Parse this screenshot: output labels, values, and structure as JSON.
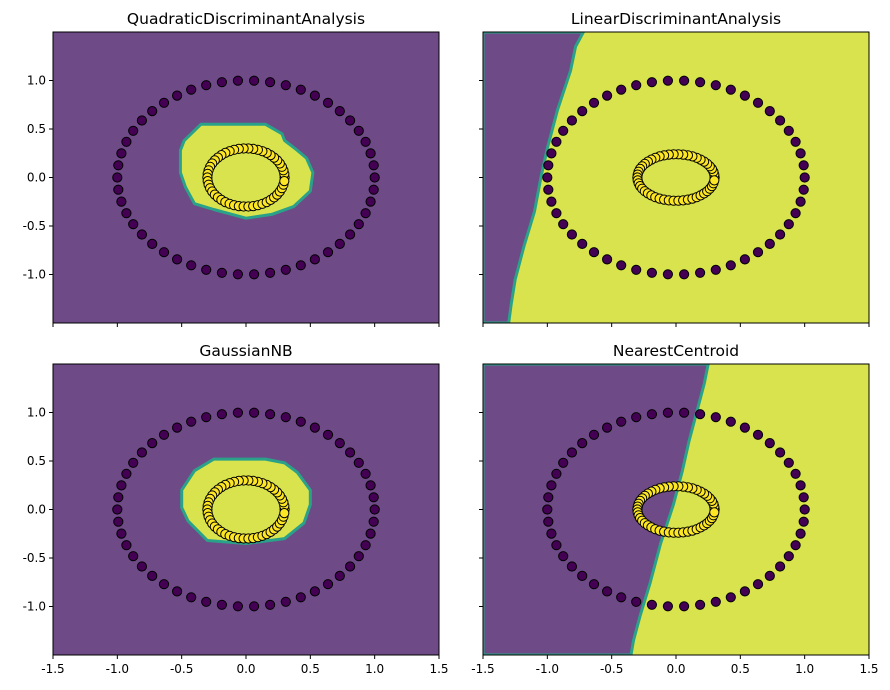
{
  "chart_data": [
    {
      "type": "scatter",
      "title": "QuadraticDiscriminantAnalysis",
      "xlim": [
        -1.5,
        1.5
      ],
      "ylim": [
        -1.5,
        1.5
      ],
      "xticks": [
        "-1.5",
        "-1.0",
        "-0.5",
        "0.0",
        "0.5",
        "1.0",
        "1.5"
      ],
      "yticks": [
        "-1.0",
        "-0.5",
        "0.0",
        "0.5",
        "1.0"
      ],
      "show_xtick_labels": false,
      "show_ytick_labels": true,
      "background_class": 0,
      "region_polygon": [
        [
          -0.51,
          0.28
        ],
        [
          -0.51,
          0.05
        ],
        [
          -0.47,
          -0.1
        ],
        [
          -0.4,
          -0.27
        ],
        [
          -0.25,
          -0.33
        ],
        [
          0.0,
          -0.42
        ],
        [
          0.2,
          -0.38
        ],
        [
          0.37,
          -0.3
        ],
        [
          0.5,
          -0.14
        ],
        [
          0.52,
          0.05
        ],
        [
          0.47,
          0.2
        ],
        [
          0.38,
          0.3
        ],
        [
          0.3,
          0.38
        ],
        [
          0.28,
          0.45
        ],
        [
          0.15,
          0.55
        ],
        [
          -0.35,
          0.55
        ],
        [
          -0.48,
          0.38
        ]
      ],
      "series": [
        {
          "class": 0,
          "shape": "circle",
          "radius": 1.0,
          "count": 50
        },
        {
          "class": 1,
          "shape": "ellipse",
          "rx": 0.3,
          "ry": 0.3,
          "count": 50
        }
      ]
    },
    {
      "type": "scatter",
      "title": "LinearDiscriminantAnalysis",
      "xlim": [
        -1.5,
        1.5
      ],
      "ylim": [
        -1.5,
        1.5
      ],
      "xticks": [
        "-1.5",
        "-1.0",
        "-0.5",
        "0.0",
        "0.5",
        "1.0",
        "1.5"
      ],
      "yticks": [
        "-1.0",
        "-0.5",
        "0.0",
        "0.5",
        "1.0"
      ],
      "show_xtick_labels": false,
      "show_ytick_labels": false,
      "background_class": 1,
      "region_polygon": [
        [
          -1.5,
          1.5
        ],
        [
          -0.72,
          1.5
        ],
        [
          -0.78,
          1.35
        ],
        [
          -0.82,
          1.1
        ],
        [
          -0.92,
          0.7
        ],
        [
          -1.0,
          0.3
        ],
        [
          -1.05,
          0.0
        ],
        [
          -1.1,
          -0.35
        ],
        [
          -1.18,
          -0.7
        ],
        [
          -1.25,
          -1.05
        ],
        [
          -1.28,
          -1.3
        ],
        [
          -1.3,
          -1.5
        ],
        [
          -1.5,
          -1.5
        ]
      ],
      "series": [
        {
          "class": 0,
          "shape": "circle",
          "radius": 1.0,
          "count": 50
        },
        {
          "class": 1,
          "shape": "ellipse",
          "rx": 0.3,
          "ry": 0.24,
          "count": 50
        }
      ]
    },
    {
      "type": "scatter",
      "title": "GaussianNB",
      "xlim": [
        -1.5,
        1.5
      ],
      "ylim": [
        -1.5,
        1.5
      ],
      "xticks": [
        "-1.5",
        "-1.0",
        "-0.5",
        "0.0",
        "0.5",
        "1.0",
        "1.5"
      ],
      "yticks": [
        "-1.0",
        "-0.5",
        "0.0",
        "0.5",
        "1.0"
      ],
      "show_xtick_labels": true,
      "show_ytick_labels": true,
      "background_class": 0,
      "region_polygon": [
        [
          -0.5,
          0.2
        ],
        [
          -0.5,
          0.02
        ],
        [
          -0.45,
          -0.12
        ],
        [
          -0.3,
          -0.32
        ],
        [
          0.0,
          -0.35
        ],
        [
          0.3,
          -0.3
        ],
        [
          0.45,
          -0.14
        ],
        [
          0.5,
          0.05
        ],
        [
          0.5,
          0.2
        ],
        [
          0.4,
          0.38
        ],
        [
          0.3,
          0.48
        ],
        [
          0.15,
          0.52
        ],
        [
          -0.25,
          0.52
        ],
        [
          -0.4,
          0.4
        ]
      ],
      "series": [
        {
          "class": 0,
          "shape": "circle",
          "radius": 1.0,
          "count": 50
        },
        {
          "class": 1,
          "shape": "ellipse",
          "rx": 0.3,
          "ry": 0.3,
          "count": 50
        }
      ]
    },
    {
      "type": "scatter",
      "title": "NearestCentroid",
      "xlim": [
        -1.5,
        1.5
      ],
      "ylim": [
        -1.5,
        1.5
      ],
      "xticks": [
        "-1.5",
        "-1.0",
        "-0.5",
        "0.0",
        "0.5",
        "1.0",
        "1.5"
      ],
      "yticks": [
        "-1.0",
        "-0.5",
        "0.0",
        "0.5",
        "1.0"
      ],
      "show_xtick_labels": true,
      "show_ytick_labels": false,
      "background_class": 1,
      "region_polygon": [
        [
          -1.5,
          1.5
        ],
        [
          0.25,
          1.5
        ],
        [
          0.22,
          1.3
        ],
        [
          0.17,
          1.05
        ],
        [
          0.1,
          0.7
        ],
        [
          0.05,
          0.4
        ],
        [
          -0.02,
          0.05
        ],
        [
          -0.12,
          -0.35
        ],
        [
          -0.2,
          -0.75
        ],
        [
          -0.28,
          -1.1
        ],
        [
          -0.33,
          -1.35
        ],
        [
          -0.35,
          -1.5
        ],
        [
          -1.5,
          -1.5
        ]
      ],
      "series": [
        {
          "class": 0,
          "shape": "circle",
          "radius": 1.0,
          "count": 50
        },
        {
          "class": 1,
          "shape": "ellipse",
          "rx": 0.3,
          "ry": 0.24,
          "count": 50
        }
      ]
    }
  ],
  "colors": {
    "class0_region": "#6e4a87",
    "class1_region": "#d9e34d",
    "boundary": "#2aa289",
    "class0_point": "#440154",
    "class1_point": "#fde725",
    "point_edge": "#000000"
  }
}
